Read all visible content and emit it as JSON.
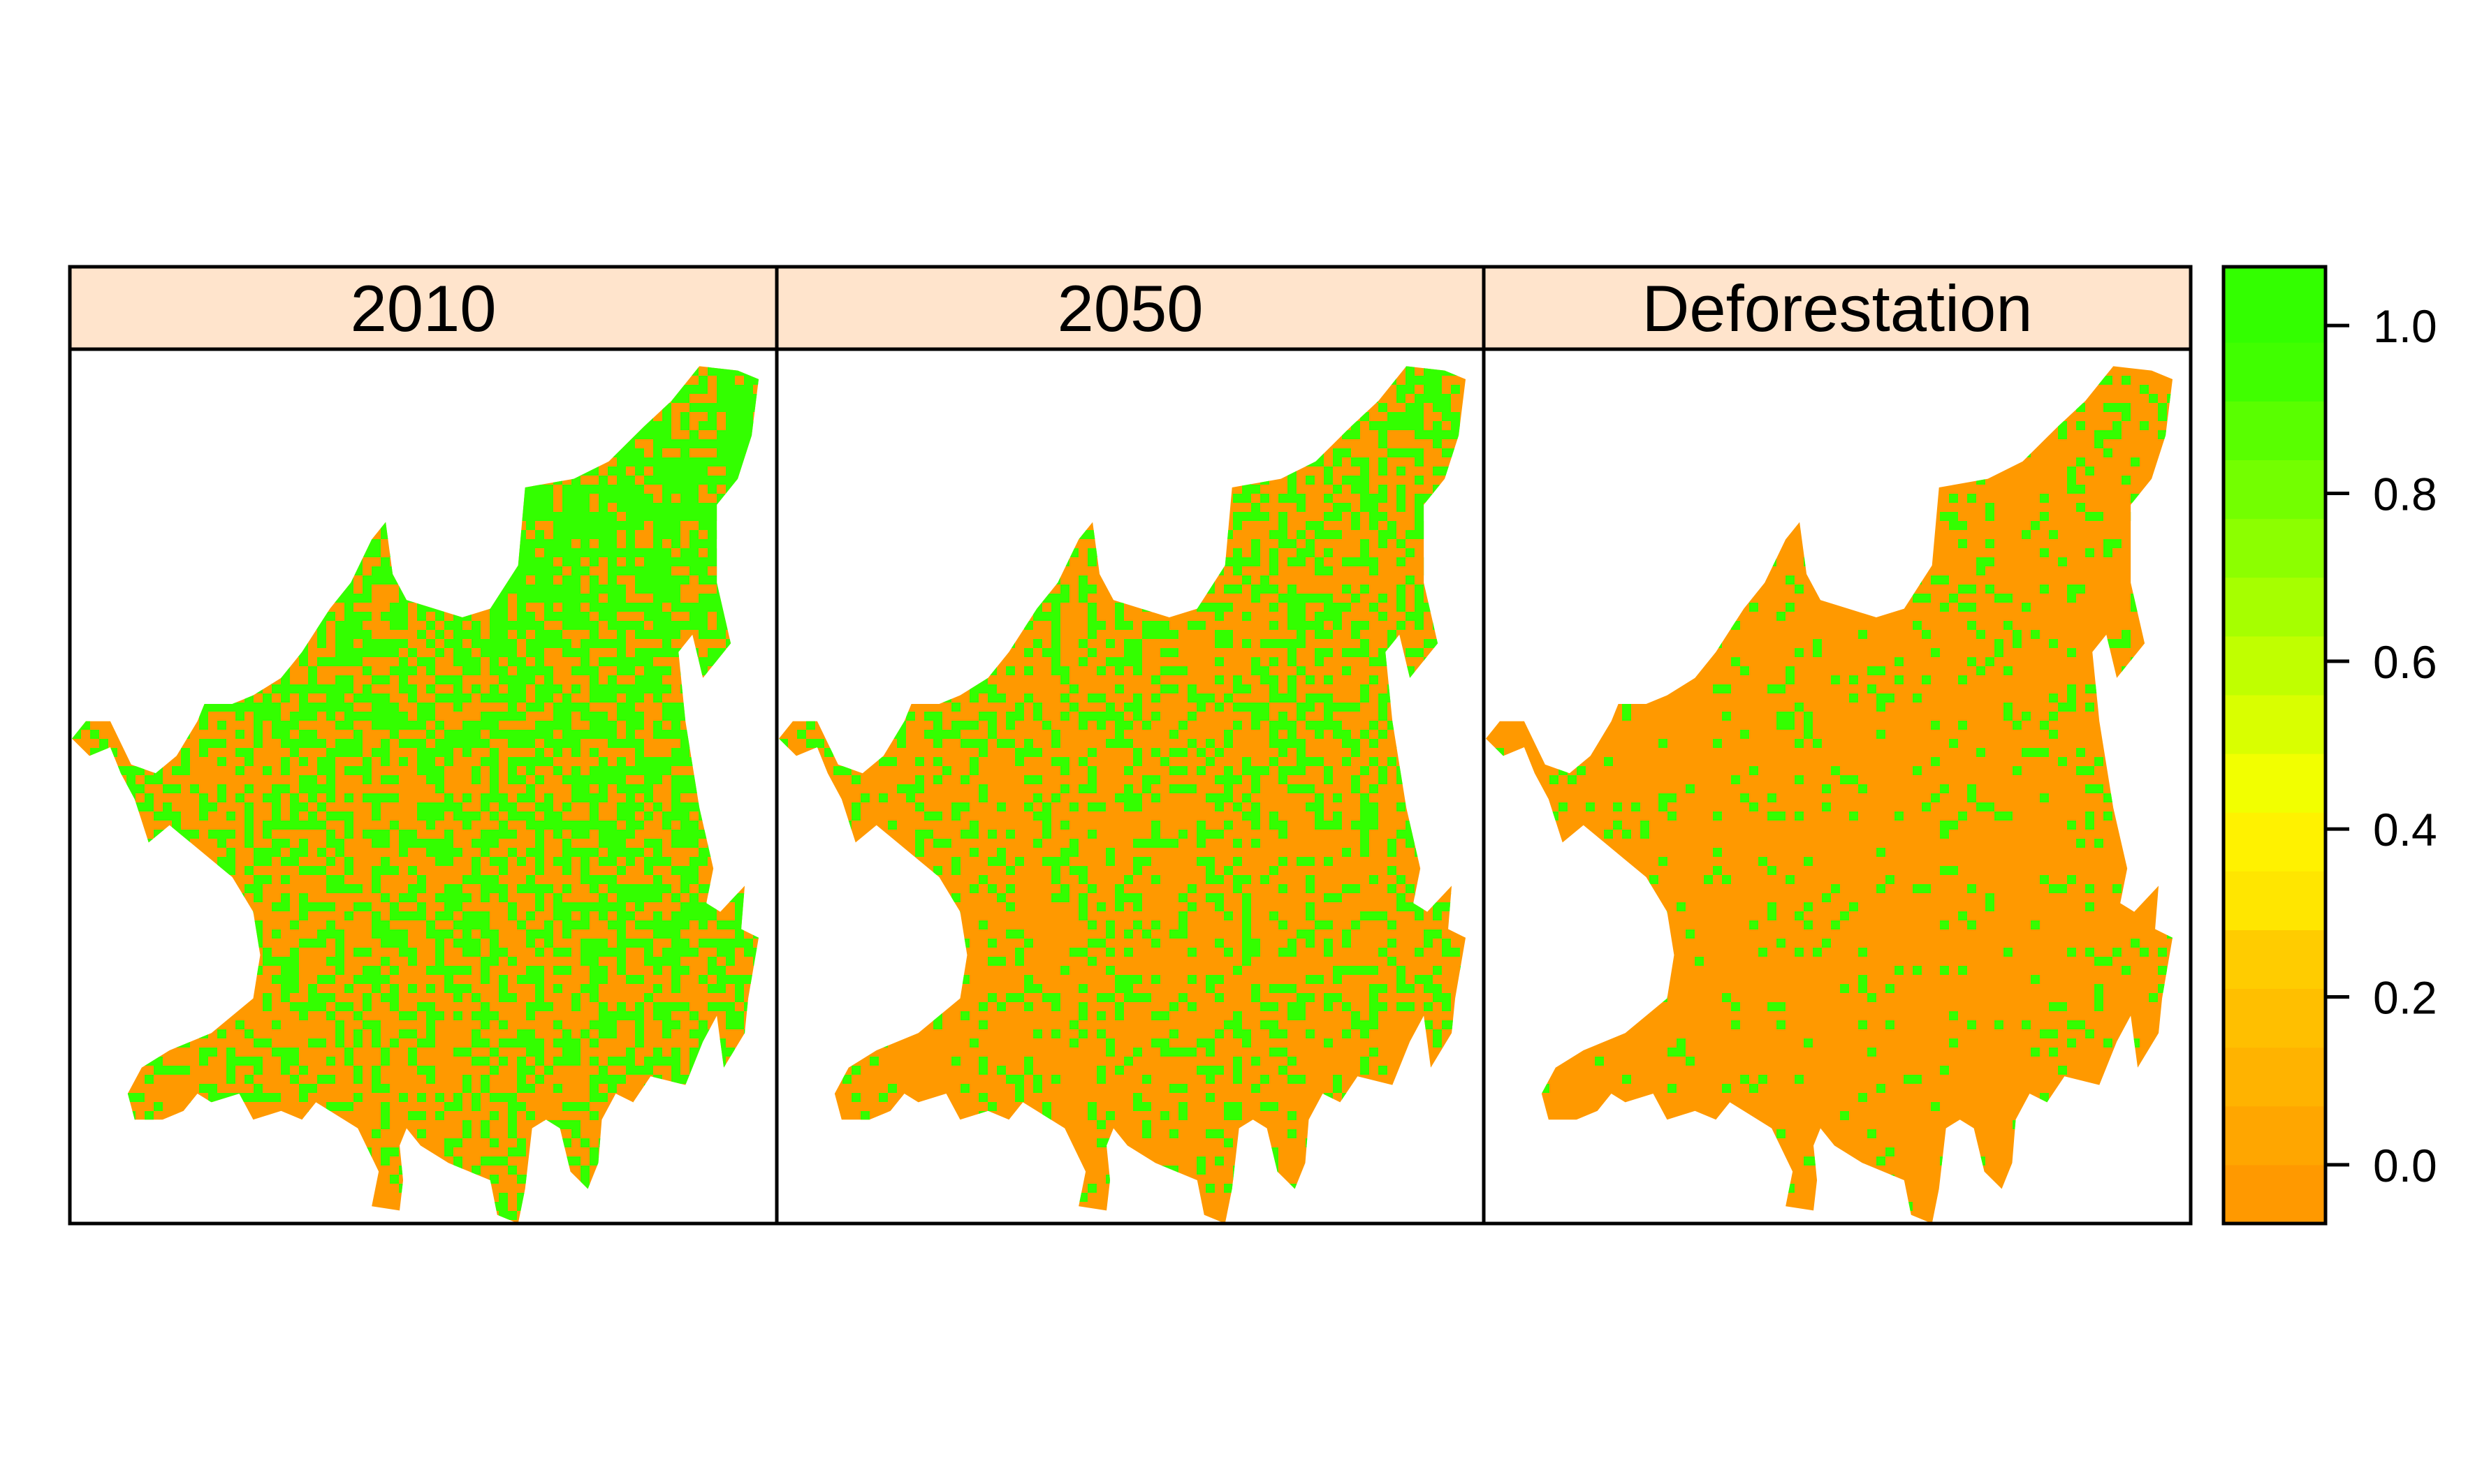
{
  "panels": [
    {
      "strip_label": "2010",
      "green_share": 0.55
    },
    {
      "strip_label": "2050",
      "green_share": 0.33
    },
    {
      "strip_label": "Deforestation",
      "green_share": 0.12
    }
  ],
  "strip_color": "#FFE4CC",
  "colorkey": {
    "range": [
      -0.07,
      1.07
    ],
    "breaks": [
      -0.07,
      0.0,
      0.07,
      0.14,
      0.21,
      0.28,
      0.35,
      0.42,
      0.49,
      0.56,
      0.63,
      0.7,
      0.77,
      0.84,
      0.91,
      0.98,
      1.07
    ],
    "colors": [
      "#FF9900",
      "#FFA600",
      "#FFB300",
      "#FFBF00",
      "#FFCC00",
      "#FFE600",
      "#FFF200",
      "#F2FF00",
      "#D9FF00",
      "#C0FF00",
      "#A6FF00",
      "#8CFF00",
      "#73FF00",
      "#59FF00",
      "#40FF00",
      "#33FF00"
    ],
    "ticks": [
      {
        "value": 0.0,
        "label": "0.0"
      },
      {
        "value": 0.2,
        "label": "0.2"
      },
      {
        "value": 0.4,
        "label": "0.4"
      },
      {
        "value": 0.6,
        "label": "0.6"
      },
      {
        "value": 0.8,
        "label": "0.8"
      },
      {
        "value": 1.0,
        "label": "1.0"
      }
    ]
  },
  "map_colors": {
    "forest": "#33FF00",
    "non_forest": "#FF9900"
  }
}
